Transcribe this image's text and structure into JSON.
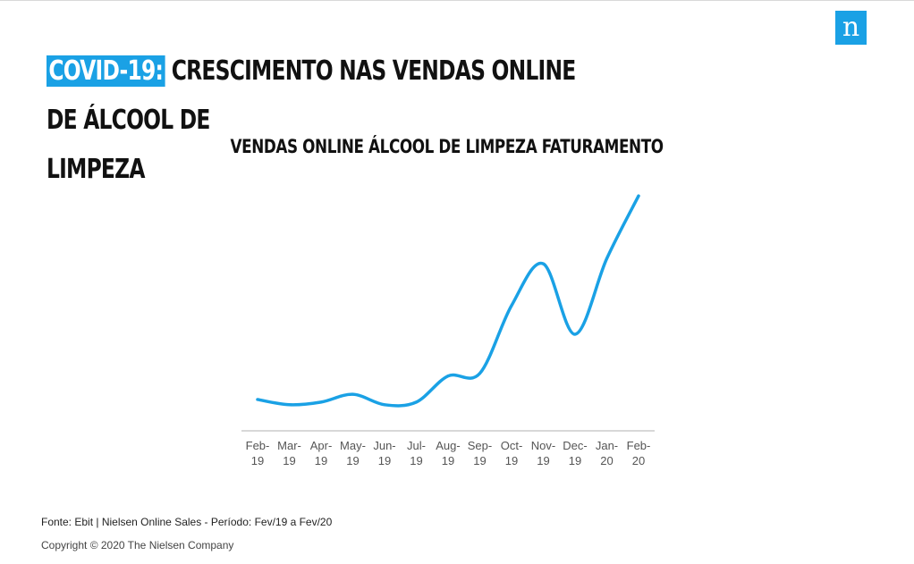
{
  "brand": {
    "logo_letter": "n",
    "color": "#1aa1e5"
  },
  "headline": {
    "highlight": "COVID-19:",
    "line1": "CRESCIMENTO NAS VENDAS ONLINE DE ÁLCOOL DE",
    "line2": "LIMPEZA"
  },
  "chart_data": {
    "type": "line",
    "title": "VENDAS ONLINE ÁLCOOL DE LIMPEZA FATURAMENTO",
    "xlabel": "",
    "ylabel": "",
    "categories": [
      "Feb-19",
      "Mar-19",
      "Apr-19",
      "May-19",
      "Jun-19",
      "Jul-19",
      "Aug-19",
      "Sep-19",
      "Oct-19",
      "Nov-19",
      "Dec-19",
      "Jan-20",
      "Feb-20"
    ],
    "tick_labels": [
      [
        "Feb-",
        "19"
      ],
      [
        "Mar-",
        "19"
      ],
      [
        "Apr-",
        "19"
      ],
      [
        "May-",
        "19"
      ],
      [
        "Jun-",
        "19"
      ],
      [
        "Jul-",
        "19"
      ],
      [
        "Aug-",
        "19"
      ],
      [
        "Sep-",
        "19"
      ],
      [
        "Oct-",
        "19"
      ],
      [
        "Nov-",
        "19"
      ],
      [
        "Dec-",
        "19"
      ],
      [
        "Jan-",
        "20"
      ],
      [
        "Feb-",
        "20"
      ]
    ],
    "series": [
      {
        "values": [
          12,
          10,
          11,
          14,
          10,
          11,
          21,
          22,
          48,
          64,
          37,
          66,
          90
        ],
        "color": "#1aa1e5"
      }
    ],
    "ylim": [
      0,
      100
    ],
    "grid": false,
    "legend": "none"
  },
  "footer": {
    "source": "Fonte: Ebit | Nielsen Online Sales - Período: Fev/19 a Fev/20",
    "copyright": "Copyright © 2020 The Nielsen Company"
  }
}
